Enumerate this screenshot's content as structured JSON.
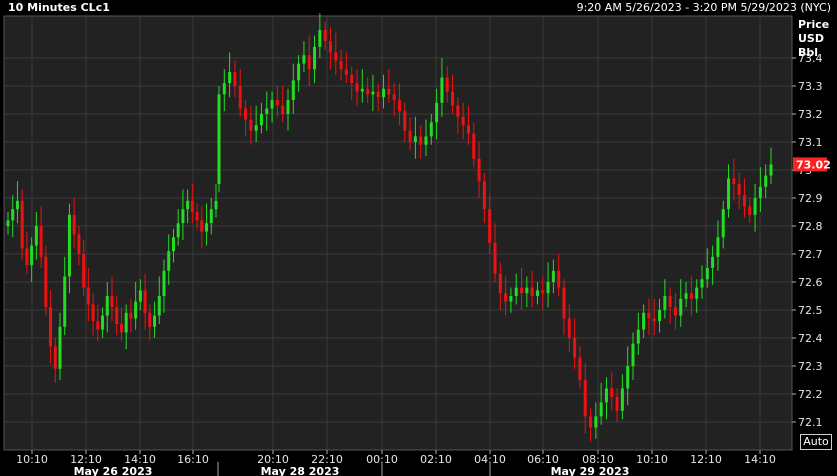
{
  "header": {
    "title": "10 Minutes CLc1",
    "range": "9:20 AM 5/26/2023 - 3:20 PM 5/29/2023 (NYC)"
  },
  "price_axis": {
    "label_lines": [
      "Price",
      "USD",
      "Bbl"
    ],
    "last_price": "73.02"
  },
  "controls": {
    "auto_label": "Auto"
  },
  "colors": {
    "background": "#000000",
    "plot_background": "#222222",
    "grid": "#3a3a3a",
    "up": "#22dd22",
    "down": "#ee1111",
    "last_price_tag": "#ff2020"
  },
  "chart_data": {
    "type": "candlestick",
    "title": "10 Minutes CLc1",
    "ylabel": "Price USD Bbl",
    "ylim": [
      72.0,
      73.55
    ],
    "y_ticks": [
      "72.1",
      "72.2",
      "72.3",
      "72.4",
      "72.5",
      "72.6",
      "72.7",
      "72.8",
      "72.9",
      "73",
      "73.1",
      "73.2",
      "73.3",
      "73.4"
    ],
    "x_ticks": [
      "10:10",
      "12:10",
      "14:10",
      "16:10",
      "20:10",
      "22:10",
      "00:10",
      "02:10",
      "04:10",
      "06:10",
      "08:10",
      "10:10",
      "12:10",
      "14:10"
    ],
    "date_labels": [
      "May 26 2023",
      "May 28 2023",
      "May 29 2023"
    ],
    "grid": true,
    "last_price": 73.02,
    "sessions": [
      {
        "name": "May 26 2023",
        "start": "09:30",
        "interval_minutes": 10,
        "closes": [
          72.82,
          72.86,
          72.89,
          72.72,
          72.66,
          72.73,
          72.8,
          72.69,
          72.51,
          72.37,
          72.29,
          72.44,
          72.62,
          72.84,
          72.77,
          72.7,
          72.58,
          72.52,
          72.46,
          72.43,
          72.48,
          72.55,
          72.51,
          72.45,
          72.42,
          72.49,
          72.47,
          72.53,
          72.57,
          72.49,
          72.44,
          72.48,
          72.55,
          72.64,
          72.71,
          72.76,
          72.81,
          72.86,
          72.89,
          72.85,
          72.82,
          72.78,
          72.81,
          72.86,
          72.89
        ]
      },
      {
        "name": "May 28 2023",
        "start": "18:00",
        "interval_minutes": 10,
        "closes": [
          73.27,
          73.31,
          73.35,
          73.3,
          73.22,
          73.18,
          73.14,
          73.16,
          73.2,
          73.22,
          73.25,
          73.23,
          73.2,
          73.25,
          73.32,
          73.38,
          73.41,
          73.36,
          73.44,
          73.5,
          73.46,
          73.42,
          73.39,
          73.36,
          73.34,
          73.31,
          73.28,
          73.29,
          73.27,
          73.28,
          73.26,
          73.29,
          73.27,
          73.25,
          73.21,
          73.14,
          73.1,
          73.12,
          73.09,
          73.12,
          73.17,
          73.24,
          73.33,
          73.28,
          73.23,
          73.19,
          73.16,
          73.13,
          73.04,
          72.96,
          72.86,
          72.74,
          72.63,
          72.56,
          72.53,
          72.55,
          72.58,
          72.56,
          72.58,
          72.55,
          72.57,
          72.56,
          72.6,
          72.64,
          72.58,
          72.47,
          72.4,
          72.33,
          72.25,
          72.12,
          72.08,
          72.12,
          72.17,
          72.22,
          72.19,
          72.14,
          72.22,
          72.3,
          72.38,
          72.43,
          72.49,
          72.47,
          72.46,
          72.5,
          72.55,
          72.51,
          72.48,
          72.54,
          72.56,
          72.54,
          72.58,
          72.61,
          72.65,
          72.69,
          72.76,
          72.86,
          72.97,
          72.95,
          72.91,
          72.87,
          72.84,
          72.9,
          72.94,
          72.98,
          73.02
        ]
      }
    ]
  }
}
